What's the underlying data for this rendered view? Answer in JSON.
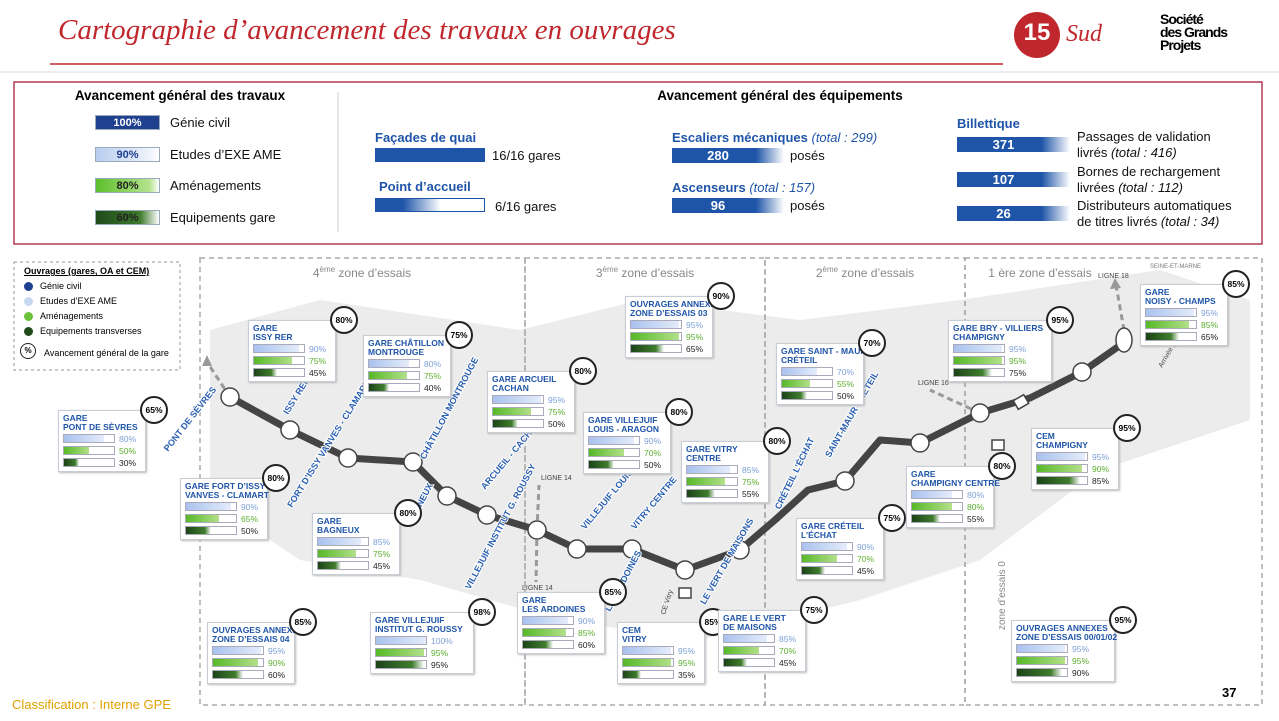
{
  "header": {
    "title": "Cartographie d’avancement des travaux en ouvrages",
    "line_number": "15",
    "line_name": "Sud",
    "logo": [
      "Société",
      "des Grands",
      "Projets"
    ]
  },
  "summary": {
    "general": {
      "title": "Avancement général des travaux",
      "items": [
        {
          "value": "100%",
          "label": "Génie civil"
        },
        {
          "value": "90%",
          "label": "Etudes d’EXE AME"
        },
        {
          "value": "80%",
          "label": "Aménagements"
        },
        {
          "value": "60%",
          "label": "Equipements gare"
        }
      ]
    },
    "equipment": {
      "title": "Avancement général des équipements",
      "facades": {
        "label": "Façades de quai",
        "value": "16/16 gares"
      },
      "accueil": {
        "label": "Point d’accueil",
        "value": "6/16 gares"
      },
      "escaliers": {
        "label": "Escaliers mécaniques",
        "total": "(total : 299)",
        "value": "280",
        "unit": "posés"
      },
      "ascenseurs": {
        "label": "Ascenseurs",
        "total": "(total : 157)",
        "value": "96",
        "unit": "posés"
      },
      "billettique": {
        "label": "Billettique",
        "items": [
          {
            "value": "371",
            "label": "Passages de validation livrés",
            "total": "(total : 416)"
          },
          {
            "value": "107",
            "label": "Bornes de rechargement livrées",
            "total": "(total : 112)"
          },
          {
            "value": "26",
            "label": "Distributeurs automatiques de titres livrés",
            "total": "(total : 34)"
          }
        ]
      }
    }
  },
  "legend": {
    "title": "Ouvrages (gares, OA et CEM)",
    "items": [
      "Génie civil",
      "Etudes d’EXE AME",
      "Aménagements",
      "Equipements transverses"
    ],
    "symbol": "%",
    "overall": "Avancement général de la gare"
  },
  "zones": [
    {
      "num": "4",
      "sup": "ème",
      "text": " zone d’essais"
    },
    {
      "num": "3",
      "sup": "ème",
      "text": " zone d’essais"
    },
    {
      "num": "2",
      "sup": "ème",
      "text": " zone d’essais"
    },
    {
      "num": "1 ",
      "sup": "",
      "text": "ère zone d’essais"
    }
  ],
  "stations": [
    {
      "name": [
        "GARE",
        "PONT DE SÈVRES"
      ],
      "overall": "65%",
      "values": [
        "80%",
        "50%",
        "30%"
      ]
    },
    {
      "name": [
        "GARE",
        "ISSY RER"
      ],
      "overall": "80%",
      "values": [
        "90%",
        "75%",
        "45%"
      ]
    },
    {
      "name": [
        "GARE FORT D’ISSY",
        "VANVES - CLAMART"
      ],
      "overall": "80%",
      "values": [
        "90%",
        "65%",
        "50%"
      ]
    },
    {
      "name": [
        "GARE CHÂTILLON",
        "MONTROUGE"
      ],
      "overall": "75%",
      "values": [
        "80%",
        "75%",
        "40%"
      ]
    },
    {
      "name": [
        "GARE",
        "BAGNEUX"
      ],
      "overall": "80%",
      "values": [
        "85%",
        "75%",
        "45%"
      ]
    },
    {
      "name": [
        "GARE ARCUEIL",
        "CACHAN"
      ],
      "overall": "80%",
      "values": [
        "95%",
        "75%",
        "50%"
      ]
    },
    {
      "name": [
        "GARE VILLEJUIF",
        "INSTITUT G. ROUSSY"
      ],
      "overall": "98%",
      "values": [
        "100%",
        "95%",
        "95%"
      ]
    },
    {
      "name": [
        "OUVRAGES ANNEXES",
        "ZONE D’ESSAIS 04"
      ],
      "overall": "85%",
      "values": [
        "95%",
        "90%",
        "60%"
      ]
    },
    {
      "name": [
        "OUVRAGES ANNEXES",
        "ZONE D’ESSAIS 03"
      ],
      "overall": "90%",
      "values": [
        "95%",
        "95%",
        "65%"
      ]
    },
    {
      "name": [
        "GARE VILLEJUIF",
        "LOUIS - ARAGON"
      ],
      "overall": "80%",
      "values": [
        "90%",
        "70%",
        "50%"
      ]
    },
    {
      "name": [
        "GARE VITRY",
        "CENTRE"
      ],
      "overall": "80%",
      "values": [
        "85%",
        "75%",
        "55%"
      ]
    },
    {
      "name": [
        "GARE",
        "LES ARDOINES"
      ],
      "overall": "85%",
      "values": [
        "90%",
        "85%",
        "60%"
      ]
    },
    {
      "name": [
        "CEM",
        "VITRY"
      ],
      "overall": "85%",
      "values": [
        "95%",
        "95%",
        "35%"
      ]
    },
    {
      "name": [
        "GARE LE VERT",
        "DE MAISONS"
      ],
      "overall": "75%",
      "values": [
        "85%",
        "70%",
        "45%"
      ]
    },
    {
      "name": [
        "GARE SAINT - MAUR",
        "CRÉTEIL"
      ],
      "overall": "70%",
      "values": [
        "70%",
        "55%",
        "50%"
      ]
    },
    {
      "name": [
        "GARE CRÉTEIL",
        "L’ÉCHAT"
      ],
      "overall": "75%",
      "values": [
        "90%",
        "70%",
        "45%"
      ]
    },
    {
      "name": [
        "GARE",
        "CHAMPIGNY CENTRE"
      ],
      "overall": "80%",
      "values": [
        "80%",
        "80%",
        "55%"
      ]
    },
    {
      "name": [
        "GARE BRY - VILLIERS",
        "CHAMPIGNY"
      ],
      "overall": "95%",
      "values": [
        "95%",
        "95%",
        "75%"
      ]
    },
    {
      "name": [
        "CEM",
        "CHAMPIGNY"
      ],
      "overall": "95%",
      "values": [
        "95%",
        "90%",
        "85%"
      ]
    },
    {
      "name": [
        "GARE",
        "NOISY - CHAMPS"
      ],
      "overall": "85%",
      "values": [
        "95%",
        "85%",
        "65%"
      ]
    },
    {
      "name": [
        "OUVRAGES ANNEXES",
        "ZONE D’ESSAIS 00/01/02"
      ],
      "overall": "95%",
      "values": [
        "95%",
        "95%",
        "90%"
      ]
    }
  ],
  "map_labels": [
    "PONT DE SÈVRES",
    "ISSY RER",
    "FORT D’ISSY VANVES - CLAMART",
    "CHÂTILLON MONTROUGE",
    "BAGNEUX",
    "ARCUEIL - CACHAN",
    "VILLEJUIF INSTITUT G. ROUSSY",
    "VILLEJUIF LOUIS - ARAGON",
    "VITRY CENTRE",
    "LES ARDOINES",
    "LE VERT DE MAISONS",
    "CRÉTEIL L’ÉCHAT",
    "SAINT-MAUR CRÉTEIL",
    "LIGNE 14",
    "LIGNE 14",
    "LIGNE 18",
    "LIGNE 16",
    "CE Vitry",
    "Arrivée gare",
    "zone d’essais 0",
    "SEINE-ET-MARNE"
  ],
  "footer": {
    "classification": "Classification : Interne GPE",
    "page": "37"
  }
}
